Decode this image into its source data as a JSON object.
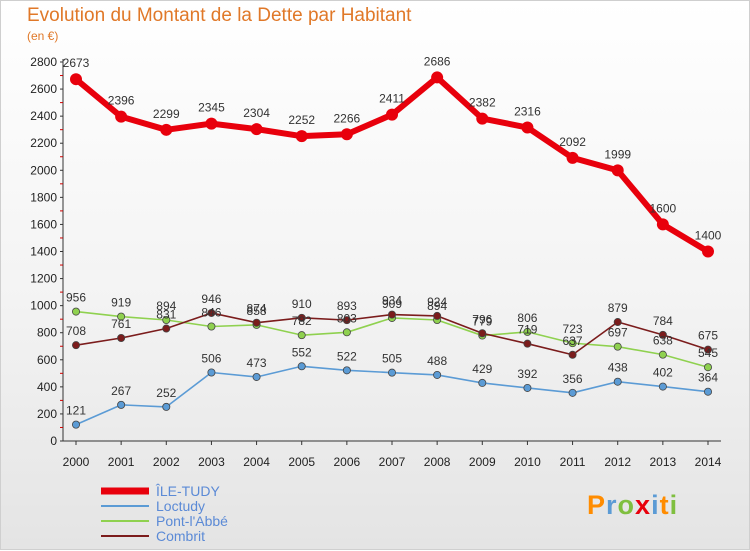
{
  "title": "Evolution du Montant de la Dette par Habitant",
  "subtitle": "(en €)",
  "logo": {
    "letters": [
      "P",
      "r",
      "o",
      "x",
      "i",
      "t",
      "i"
    ]
  },
  "chart_data": {
    "type": "line",
    "x": [
      2000,
      2001,
      2002,
      2003,
      2004,
      2005,
      2006,
      2007,
      2008,
      2009,
      2010,
      2011,
      2012,
      2013,
      2014
    ],
    "ylim": [
      0,
      2800
    ],
    "yticks": [
      0,
      200,
      400,
      600,
      800,
      1000,
      1200,
      1400,
      1600,
      1800,
      2000,
      2200,
      2400,
      2600,
      2800
    ],
    "grid": false,
    "legend_position": "bottom-left",
    "series": [
      {
        "name": "ÎLE-TUDY",
        "color": "#e8000c",
        "values": [
          2673,
          2396,
          2299,
          2345,
          2304,
          2252,
          2266,
          2411,
          2686,
          2382,
          2316,
          2092,
          1999,
          1600,
          1400
        ]
      },
      {
        "name": "Loctudy",
        "color": "#5b9bd5",
        "values": [
          121,
          267,
          252,
          506,
          473,
          552,
          522,
          505,
          488,
          429,
          392,
          356,
          438,
          402,
          364
        ]
      },
      {
        "name": "Pont-l'Abbé",
        "color": "#8fd14f",
        "values": [
          956,
          919,
          894,
          846,
          858,
          782,
          803,
          909,
          894,
          779,
          806,
          723,
          697,
          638,
          545
        ]
      },
      {
        "name": "Combrit",
        "color": "#7b1c1c",
        "values": [
          708,
          761,
          831,
          946,
          874,
          910,
          893,
          934,
          924,
          796,
          719,
          637,
          879,
          784,
          675
        ]
      }
    ]
  }
}
